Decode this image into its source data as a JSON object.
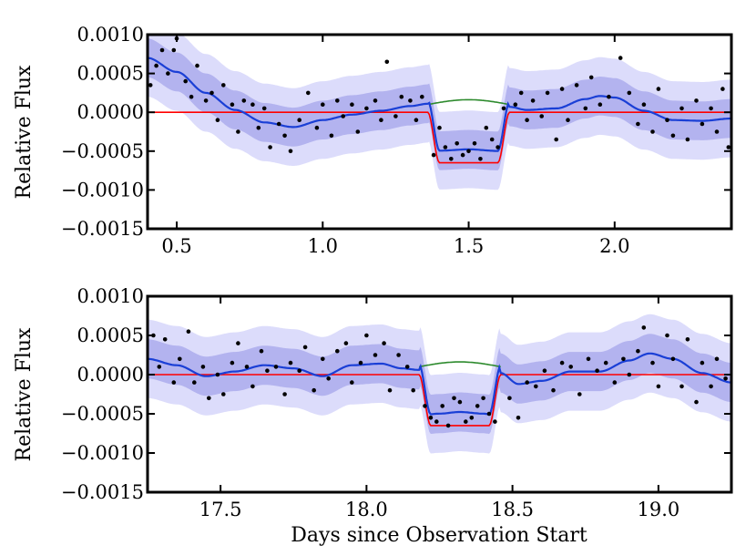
{
  "chart_data": [
    {
      "type": "line",
      "ylabel": "Relative Flux",
      "xlabel": "",
      "xlim": [
        0.4,
        2.4
      ],
      "ylim": [
        -0.0015,
        0.001
      ],
      "xticks": [
        0.5,
        1.0,
        1.5,
        2.0
      ],
      "xtick_labels": [
        "0.5",
        "1.0",
        "1.5",
        "2.0"
      ],
      "yticks": [
        0.001,
        0.0005,
        0.0,
        -0.0005,
        -0.001,
        -0.0015
      ],
      "ytick_labels": [
        "0.0010",
        "0.0005",
        "0.0000",
        "−0.0005",
        "−0.0010",
        "−0.0015"
      ],
      "transit": {
        "start": 1.36,
        "end": 1.64,
        "depth": 0.00065,
        "gp_peak": 0.00018
      },
      "gp_mean": {
        "x": [
          0.4,
          0.5,
          0.6,
          0.7,
          0.8,
          0.9,
          1.0,
          1.1,
          1.2,
          1.3,
          1.36,
          1.4,
          1.5,
          1.6,
          1.64,
          1.7,
          1.8,
          1.9,
          1.95,
          2.0,
          2.1,
          2.2,
          2.3,
          2.4
        ],
        "y": [
          0.0007,
          0.00052,
          0.00025,
          3e-05,
          -0.00013,
          -0.00019,
          -0.0001,
          -3e-05,
          2e-05,
          8e-05,
          0.00011,
          0.00013,
          0.00018,
          0.00012,
          7e-05,
          3e-05,
          5e-05,
          0.00017,
          0.00021,
          0.00019,
          2e-05,
          -0.0001,
          -0.00011,
          -8e-05
        ]
      },
      "bands": {
        "inner": 0.00025,
        "outer": 0.0005
      },
      "points": {
        "x": [
          0.41,
          0.43,
          0.45,
          0.47,
          0.49,
          0.5,
          0.53,
          0.55,
          0.57,
          0.6,
          0.62,
          0.64,
          0.66,
          0.69,
          0.71,
          0.73,
          0.76,
          0.78,
          0.8,
          0.82,
          0.85,
          0.87,
          0.89,
          0.92,
          0.95,
          0.98,
          1.0,
          1.03,
          1.05,
          1.07,
          1.1,
          1.12,
          1.15,
          1.18,
          1.2,
          1.22,
          1.25,
          1.27,
          1.3,
          1.32,
          1.34,
          1.38,
          1.4,
          1.42,
          1.44,
          1.46,
          1.48,
          1.5,
          1.52,
          1.54,
          1.56,
          1.58,
          1.6,
          1.62,
          1.66,
          1.68,
          1.7,
          1.72,
          1.75,
          1.77,
          1.8,
          1.82,
          1.84,
          1.87,
          1.9,
          1.92,
          1.95,
          1.98,
          2.02,
          2.05,
          2.08,
          2.1,
          2.13,
          2.15,
          2.18,
          2.2,
          2.23,
          2.25,
          2.28,
          2.3,
          2.33,
          2.35,
          2.37,
          2.39
        ],
        "y": [
          0.00035,
          0.0006,
          0.0008,
          0.0005,
          0.0008,
          0.00095,
          0.0004,
          0.0002,
          0.0006,
          0.00015,
          0.00025,
          -0.0001,
          0.00035,
          0.0001,
          -0.00025,
          0.00015,
          0.0001,
          -0.0002,
          5e-05,
          -0.00045,
          -0.00015,
          -0.0003,
          -0.0005,
          -0.0001,
          0.00025,
          -0.0002,
          0.0001,
          -0.0003,
          0.00015,
          -5e-05,
          0.0001,
          -0.00025,
          5e-05,
          0.00015,
          -0.0001,
          0.00065,
          -5e-05,
          0.0002,
          0.00015,
          -0.0001,
          0.0002,
          -0.00055,
          -0.0002,
          -0.00045,
          -0.0006,
          -0.0004,
          -0.00055,
          -0.0005,
          -0.0004,
          -0.0006,
          -0.0002,
          -0.00035,
          -0.00045,
          5e-05,
          0.0001,
          0.00025,
          -0.0001,
          0.00015,
          -5e-05,
          0.00025,
          -0.00035,
          0.0003,
          -0.0001,
          0.00035,
          5e-05,
          0.00045,
          0.0001,
          0.0002,
          0.0007,
          0.00025,
          -0.00015,
          0.0001,
          -0.00025,
          0.0003,
          -0.0001,
          -0.0003,
          5e-05,
          -0.00035,
          0.00015,
          -0.00015,
          5e-05,
          -0.00025,
          0.0003,
          -0.00045
        ]
      }
    },
    {
      "type": "line",
      "ylabel": "Relative Flux",
      "xlabel": "Days since Observation Start",
      "xlim": [
        17.25,
        19.25
      ],
      "ylim": [
        -0.0015,
        0.001
      ],
      "xticks": [
        17.5,
        18.0,
        18.5,
        19.0
      ],
      "xtick_labels": [
        "17.5",
        "18.0",
        "18.5",
        "19.0"
      ],
      "yticks": [
        0.001,
        0.0005,
        0.0,
        -0.0005,
        -0.001,
        -0.0015
      ],
      "ytick_labels": [
        "0.0010",
        "0.0005",
        "0.0000",
        "−0.0005",
        "−0.0010",
        "−0.0015"
      ],
      "transit": {
        "start": 18.18,
        "end": 18.46,
        "depth": 0.00065,
        "gp_peak": 0.00018
      },
      "gp_mean": {
        "x": [
          17.25,
          17.35,
          17.45,
          17.55,
          17.65,
          17.75,
          17.85,
          17.95,
          18.05,
          18.12,
          18.18,
          18.25,
          18.32,
          18.4,
          18.46,
          18.52,
          18.6,
          18.7,
          18.8,
          18.9,
          18.97,
          19.05,
          19.15,
          19.25
        ],
        "y": [
          0.0002,
          0.00012,
          -2e-05,
          4e-05,
          0.00012,
          8e-05,
          -2e-05,
          0.00012,
          0.00014,
          8e-05,
          6e-05,
          0.00012,
          0.00018,
          0.00012,
          2e-05,
          -0.00012,
          -8e-05,
          4e-05,
          4e-05,
          0.00018,
          0.00027,
          0.0002,
          2e-05,
          -0.0001
        ]
      },
      "bands": {
        "inner": 0.00025,
        "outer": 0.0005
      },
      "points": {
        "x": [
          17.27,
          17.29,
          17.31,
          17.34,
          17.36,
          17.39,
          17.41,
          17.44,
          17.46,
          17.49,
          17.51,
          17.54,
          17.56,
          17.59,
          17.61,
          17.64,
          17.66,
          17.69,
          17.72,
          17.74,
          17.77,
          17.79,
          17.82,
          17.85,
          17.87,
          17.9,
          17.93,
          17.95,
          17.98,
          18.0,
          18.03,
          18.06,
          18.08,
          18.11,
          18.14,
          18.16,
          18.2,
          18.22,
          18.24,
          18.26,
          18.28,
          18.3,
          18.32,
          18.34,
          18.36,
          18.38,
          18.4,
          18.42,
          18.44,
          18.49,
          18.52,
          18.55,
          18.58,
          18.61,
          18.64,
          18.67,
          18.7,
          18.73,
          18.76,
          18.79,
          18.82,
          18.85,
          18.88,
          18.9,
          18.93,
          18.95,
          18.98,
          19.0,
          19.03,
          19.05,
          19.08,
          19.1,
          19.13,
          19.15,
          19.18,
          19.2,
          19.23
        ],
        "y": [
          0.0005,
          0.0001,
          0.00045,
          -0.0001,
          0.0002,
          0.00055,
          -0.0001,
          0.0001,
          -0.0003,
          0.0,
          -0.00025,
          0.00015,
          0.0004,
          0.0001,
          -0.00015,
          0.0003,
          5e-05,
          0.0001,
          -0.00025,
          0.00015,
          5e-05,
          0.00035,
          -0.0002,
          0.0002,
          -5e-05,
          0.0003,
          0.0004,
          -0.0001,
          0.00015,
          0.0005,
          0.00025,
          0.0004,
          -0.0002,
          0.00025,
          0.0001,
          -0.0002,
          -0.0004,
          -0.00055,
          -0.0006,
          -0.0004,
          -0.00065,
          -0.0003,
          -0.00035,
          -0.0006,
          -0.00055,
          -0.0004,
          -0.0003,
          -0.0005,
          -0.0006,
          -0.0003,
          -0.00055,
          -0.0001,
          -0.00015,
          5e-05,
          -0.0002,
          0.00015,
          0.0001,
          -0.00025,
          0.0002,
          5e-05,
          0.00015,
          -0.0001,
          0.0002,
          0.0,
          0.0003,
          0.0006,
          0.00015,
          -0.00015,
          0.0005,
          0.0002,
          -0.00015,
          0.00045,
          -0.00035,
          0.00015,
          -0.00015,
          0.0002,
          -5e-05
        ]
      }
    }
  ]
}
